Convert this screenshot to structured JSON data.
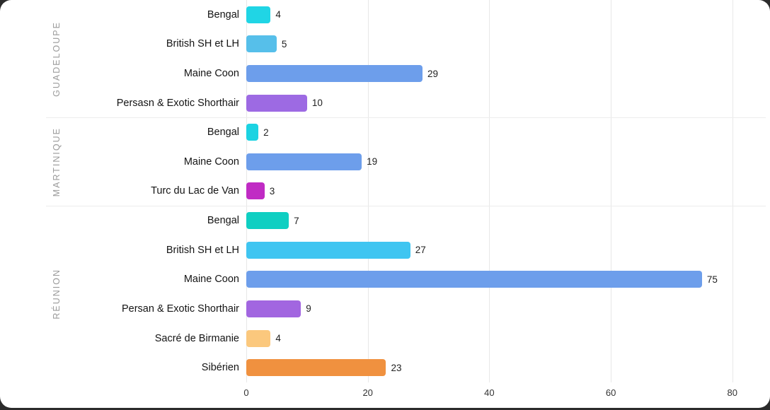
{
  "chart_data": {
    "type": "bar",
    "orientation": "horizontal",
    "title": "",
    "xlabel": "",
    "ylabel": "",
    "grid": true,
    "x_ticks": [
      0,
      20,
      40,
      60,
      80
    ],
    "xlim": [
      0,
      85.5
    ],
    "groups": [
      {
        "region": "GUADELOUPE",
        "rows": [
          {
            "label": "Bengal",
            "value": 4,
            "color": "#20d5e5"
          },
          {
            "label": "British SH et LH",
            "value": 5,
            "color": "#56bfea"
          },
          {
            "label": "Maine Coon",
            "value": 29,
            "color": "#6d9eeb"
          },
          {
            "label": "Persasn & Exotic Shorthair",
            "value": 10,
            "color": "#9d6ae3"
          }
        ]
      },
      {
        "region": "MARTINIQUE",
        "rows": [
          {
            "label": "Bengal",
            "value": 2,
            "color": "#1bd3e2"
          },
          {
            "label": "Maine Coon",
            "value": 19,
            "color": "#6d9eeb"
          },
          {
            "label": "Turc du Lac de Van",
            "value": 3,
            "color": "#c02bc4"
          }
        ]
      },
      {
        "region": "RÉUNION",
        "rows": [
          {
            "label": "Bengal",
            "value": 7,
            "color": "#0fcfc2"
          },
          {
            "label": "British SH et LH",
            "value": 27,
            "color": "#3fc5f1"
          },
          {
            "label": "Maine Coon",
            "value": 75,
            "color": "#6d9eeb"
          },
          {
            "label": "Persan & Exotic Shorthair",
            "value": 9,
            "color": "#a266e0"
          },
          {
            "label": "Sacré de Birmanie",
            "value": 4,
            "color": "#fbc87d"
          },
          {
            "label": "Sibérien",
            "value": 23,
            "color": "#f0913f"
          }
        ]
      }
    ]
  }
}
